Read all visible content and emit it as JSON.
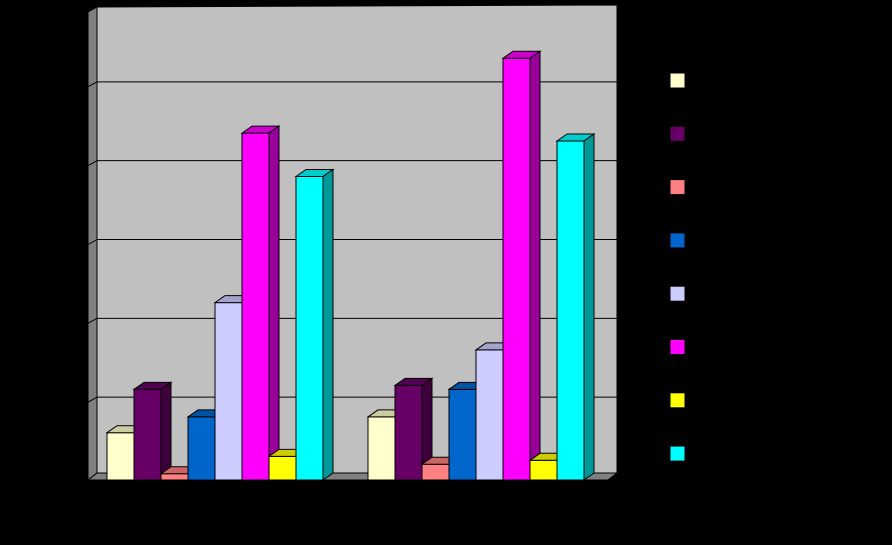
{
  "chart_data": {
    "type": "bar",
    "three_d": true,
    "title": "",
    "xlabel": "",
    "ylabel": "",
    "ylim": [
      0,
      6
    ],
    "grid": true,
    "legend_position": "right",
    "categories": [
      "",
      ""
    ],
    "series": [
      {
        "color": "#FFFFCC",
        "values": [
          0.6,
          0.8
        ]
      },
      {
        "color": "#660066",
        "values": [
          1.15,
          1.2
        ]
      },
      {
        "color": "#FF8080",
        "values": [
          0.08,
          0.2
        ]
      },
      {
        "color": "#0066CC",
        "values": [
          0.8,
          1.15
        ]
      },
      {
        "color": "#CCCCFF",
        "values": [
          2.25,
          1.65
        ]
      },
      {
        "color": "#FF00FF",
        "values": [
          4.4,
          5.35
        ]
      },
      {
        "color": "#FFFF00",
        "values": [
          0.3,
          0.25
        ]
      },
      {
        "color": "#00FFFF",
        "values": [
          3.85,
          4.3
        ]
      }
    ]
  }
}
